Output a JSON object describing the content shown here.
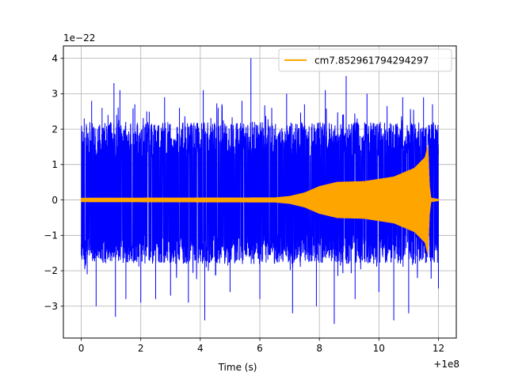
{
  "chart_data": {
    "type": "line",
    "title": "",
    "xlabel": "Time (s)",
    "ylabel": "",
    "x_offset_label": "+1e8",
    "y_scale_label": "1e−22",
    "xlim": [
      -0.6,
      12.6
    ],
    "ylim": [
      -3.9,
      4.35
    ],
    "x_ticks": [
      0,
      2,
      4,
      6,
      8,
      10,
      12
    ],
    "x_tick_labels": [
      "0",
      "2",
      "4",
      "6",
      "8",
      "10",
      "12"
    ],
    "y_ticks": [
      -3,
      -2,
      -1,
      0,
      1,
      2,
      3,
      4
    ],
    "y_tick_labels": [
      "−3",
      "−2",
      "−1",
      "0",
      "1",
      "2",
      "3",
      "4"
    ],
    "grid": true,
    "legend_position": "upper right",
    "series": [
      {
        "color": "#0000ff",
        "description_x_range": [
          0,
          12
        ],
        "typical_band": [
          -1.8,
          2.2
        ],
        "noise_peaks": [
          {
            "x": 0.1,
            "y": 2.3
          },
          {
            "x": 0.2,
            "y": -2.1
          },
          {
            "x": 0.35,
            "y": 2.8
          },
          {
            "x": 0.5,
            "y": -3.0
          },
          {
            "x": 0.7,
            "y": 2.6
          },
          {
            "x": 0.9,
            "y": 2.4
          },
          {
            "x": 1.1,
            "y": 3.3
          },
          {
            "x": 1.15,
            "y": -3.3
          },
          {
            "x": 1.3,
            "y": 3.1
          },
          {
            "x": 1.5,
            "y": -2.8
          },
          {
            "x": 1.8,
            "y": 2.7
          },
          {
            "x": 2.0,
            "y": -2.9
          },
          {
            "x": 2.2,
            "y": 2.5
          },
          {
            "x": 2.5,
            "y": -2.8
          },
          {
            "x": 2.8,
            "y": 2.9
          },
          {
            "x": 3.0,
            "y": -2.7
          },
          {
            "x": 3.3,
            "y": 2.6
          },
          {
            "x": 3.6,
            "y": -2.9
          },
          {
            "x": 4.1,
            "y": 3.1
          },
          {
            "x": 4.15,
            "y": -3.4
          },
          {
            "x": 4.6,
            "y": 2.6
          },
          {
            "x": 5.0,
            "y": -2.6
          },
          {
            "x": 5.4,
            "y": 2.8
          },
          {
            "x": 5.7,
            "y": 4.0
          },
          {
            "x": 6.0,
            "y": -2.8
          },
          {
            "x": 6.4,
            "y": 2.6
          },
          {
            "x": 6.9,
            "y": 3.0
          },
          {
            "x": 7.1,
            "y": -3.2
          },
          {
            "x": 7.5,
            "y": 2.7
          },
          {
            "x": 7.9,
            "y": -3.0
          },
          {
            "x": 8.2,
            "y": 3.1
          },
          {
            "x": 8.5,
            "y": -3.5
          },
          {
            "x": 8.9,
            "y": 3.5
          },
          {
            "x": 9.2,
            "y": -2.8
          },
          {
            "x": 9.6,
            "y": 3.0
          },
          {
            "x": 10.0,
            "y": -2.6
          },
          {
            "x": 10.5,
            "y": -3.4
          },
          {
            "x": 10.8,
            "y": 2.9
          },
          {
            "x": 11.0,
            "y": -3.2
          },
          {
            "x": 11.5,
            "y": 2.9
          },
          {
            "x": 11.8,
            "y": 2.7
          },
          {
            "x": 12.0,
            "y": -2.5
          }
        ]
      },
      {
        "name": "cm7.852961794294297",
        "color": "#ffa500",
        "envelope": [
          {
            "x": 0.0,
            "amp": 0.05
          },
          {
            "x": 6.5,
            "amp": 0.06
          },
          {
            "x": 7.0,
            "amp": 0.1
          },
          {
            "x": 7.5,
            "amp": 0.2
          },
          {
            "x": 8.0,
            "amp": 0.38
          },
          {
            "x": 8.6,
            "amp": 0.5
          },
          {
            "x": 9.5,
            "amp": 0.52
          },
          {
            "x": 10.5,
            "amp": 0.65
          },
          {
            "x": 11.2,
            "amp": 0.9
          },
          {
            "x": 11.55,
            "amp": 1.2
          },
          {
            "x": 11.65,
            "amp": 1.55
          },
          {
            "x": 11.7,
            "amp": 0.4
          },
          {
            "x": 11.75,
            "amp": 0.05
          },
          {
            "x": 12.0,
            "amp": 0.02
          }
        ]
      }
    ]
  }
}
